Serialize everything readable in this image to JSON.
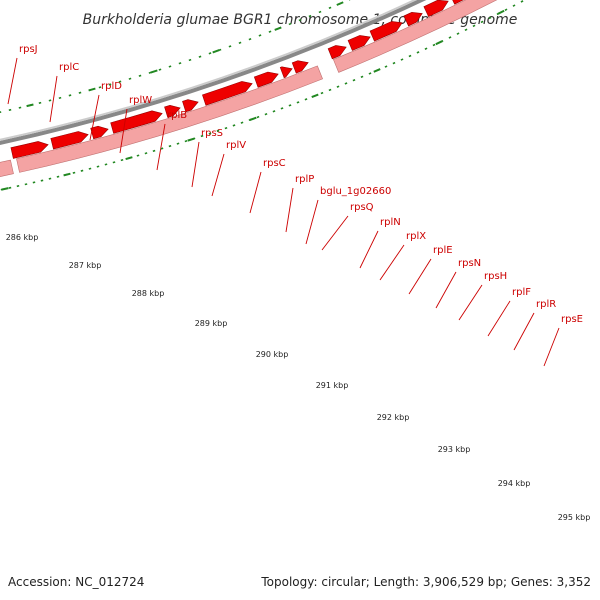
{
  "title": "Burkholderia glumae BGR1 chromosome 1, complete genome",
  "footer": {
    "accession": "Accession: NC_012724",
    "summary": "Topology: circular; Length: 3,906,529 bp; Genes: 3,352"
  },
  "colors": {
    "gene_label": "#cc0000",
    "gene_fill": "#ee0000",
    "gene_outline": "#990000",
    "operon_fill": "#f4a3a3",
    "adjacent_feature": "#99ee33",
    "backbone": "#888888",
    "tick": "#228822"
  },
  "genes": [
    "rpsJ",
    "rplC",
    "rplD",
    "rplW",
    "rplB",
    "rpsS",
    "rplV",
    "rpsC",
    "rplP",
    "bglu_1g02660",
    "rpsQ",
    "rplN",
    "rplX",
    "rplE",
    "rpsN",
    "rpsH",
    "rplF",
    "rplR",
    "rpsE"
  ],
  "kbp_labels": [
    "286 kbp",
    "287 kbp",
    "288 kbp",
    "289 kbp",
    "290 kbp",
    "291 kbp",
    "292 kbp",
    "293 kbp",
    "294 kbp",
    "295 kbp"
  ]
}
